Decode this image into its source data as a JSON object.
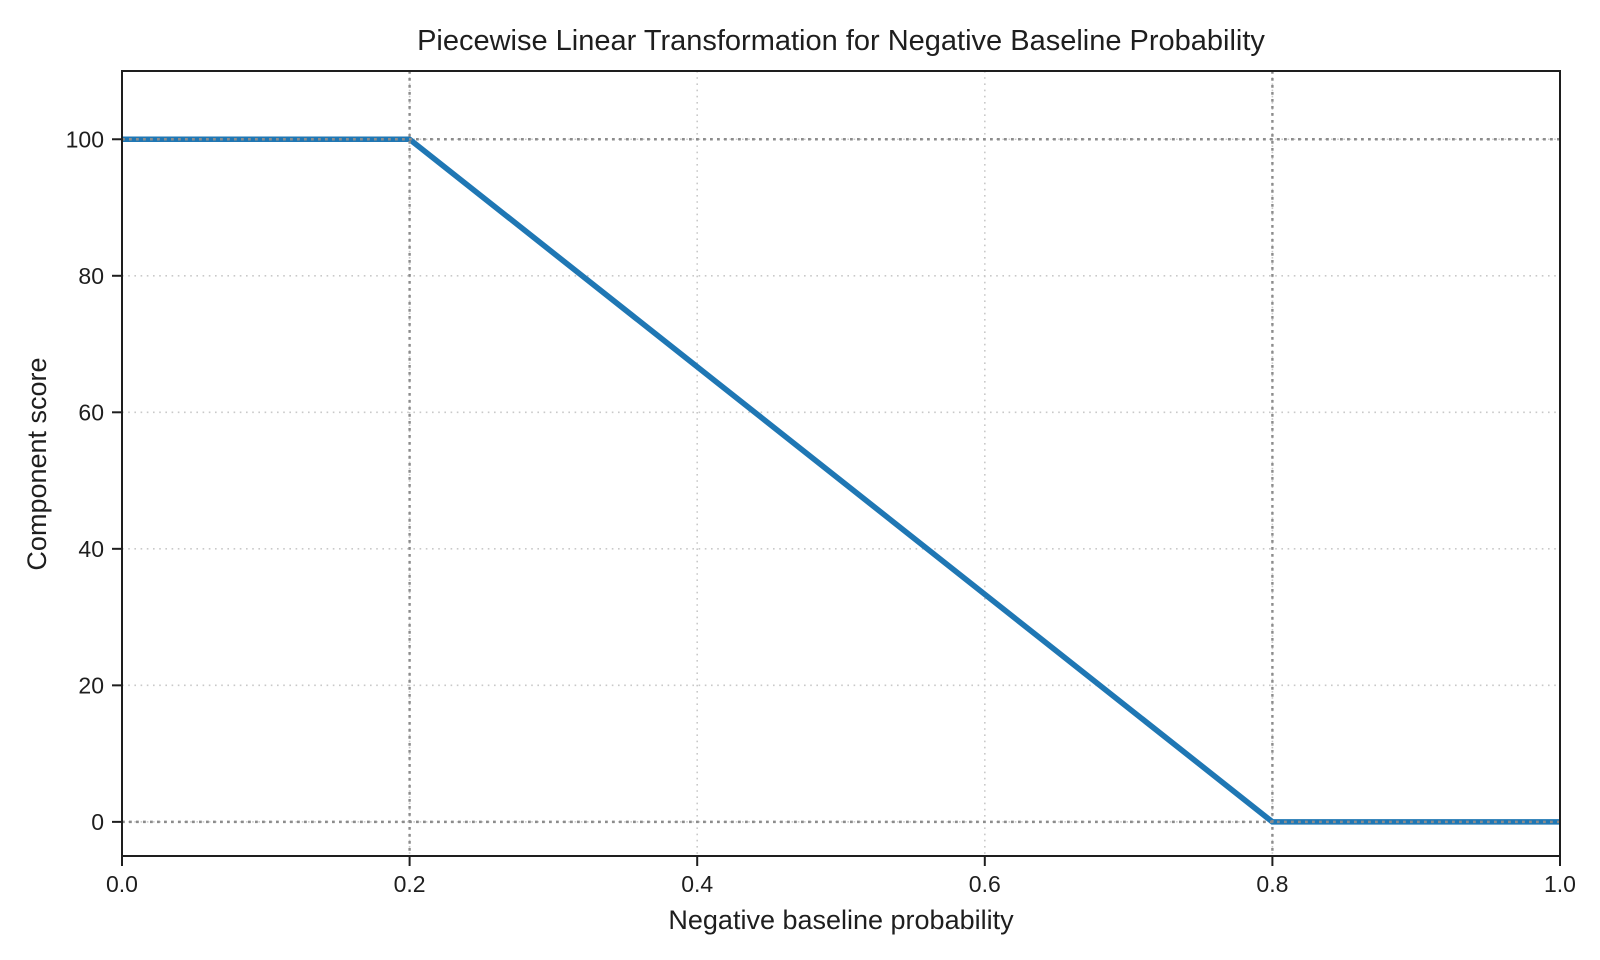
{
  "figure": {
    "background": "#ffffff",
    "text_color": "#1e1e1e"
  },
  "chart_data": {
    "type": "line",
    "title": "Piecewise Linear Transformation for Negative Baseline Probability",
    "xlabel": "Negative baseline probability",
    "ylabel": "Component score",
    "xlim": [
      0.0,
      1.0
    ],
    "ylim": [
      -5,
      110
    ],
    "xticks": {
      "values": [
        0.0,
        0.2,
        0.4,
        0.6,
        0.8,
        1.0
      ],
      "labels": [
        "0.0",
        "0.2",
        "0.4",
        "0.6",
        "0.8",
        "1.0"
      ]
    },
    "yticks": {
      "values": [
        0,
        20,
        40,
        60,
        80,
        100
      ],
      "labels": [
        "0",
        "20",
        "40",
        "60",
        "80",
        "100"
      ]
    },
    "grid": {
      "show": true,
      "style": "dotted",
      "color": "#c9c9c9"
    },
    "reference_lines": {
      "style": "dotted",
      "color": "#8c8c8c",
      "vertical_x": [
        0.2,
        0.8
      ],
      "horizontal_y": [
        100,
        0
      ]
    },
    "series": [
      {
        "name": "Component score",
        "color": "#1f77b4",
        "points": [
          {
            "x": 0.0,
            "y": 100
          },
          {
            "x": 0.2,
            "y": 100
          },
          {
            "x": 0.8,
            "y": 0
          },
          {
            "x": 1.0,
            "y": 0
          }
        ]
      }
    ],
    "legend": {
      "show": false
    }
  }
}
